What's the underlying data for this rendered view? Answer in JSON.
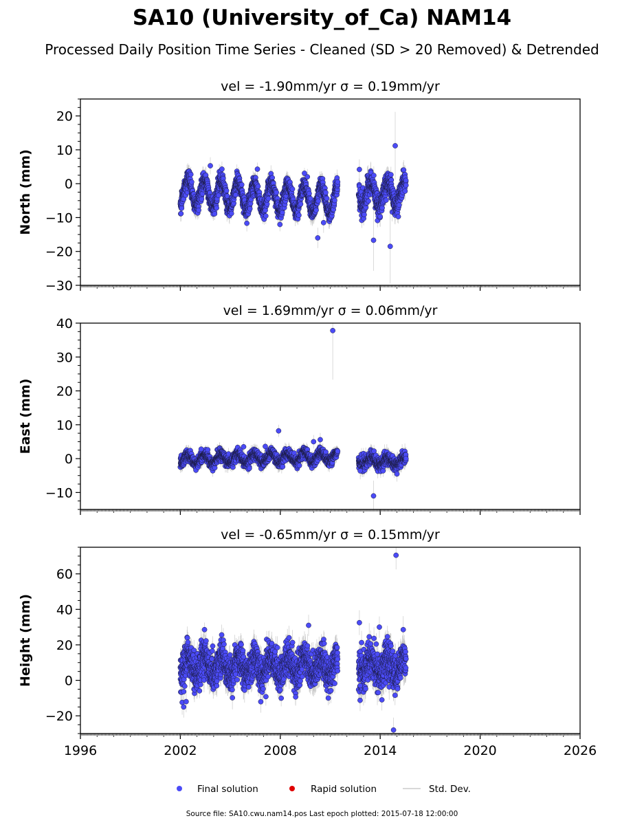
{
  "figure": {
    "title": "SA10 (University_of_Ca) NAM14",
    "subtitle": "Processed Daily Position Time Series - Cleaned (SD > 20 Removed) & Detrended",
    "source_text": "Source file: SA10.cwu.nam14.pos  Last epoch plotted: 2015-07-18 12:00:00"
  },
  "legend": {
    "placement": "bottom-center",
    "items": [
      {
        "label": "Final solution",
        "marker": "circle",
        "color": "#4b4bf7"
      },
      {
        "label": "Rapid solution",
        "marker": "circle",
        "color": "#e00000"
      },
      {
        "label": "Std. Dev.",
        "marker": "line",
        "color": "#cccccc"
      }
    ]
  },
  "colors": {
    "final_fill": "#4b4bf7",
    "final_edge": "#1a1a40",
    "rapid_fill": "#e00000",
    "errorbar": "#bdbdbd"
  },
  "chart_data": [
    {
      "type": "scatter",
      "panel": "north",
      "title": "vel = -1.90mm/yr   σ = 0.19mm/yr",
      "ylabel": "North (mm)",
      "xlim": [
        1996,
        2026
      ],
      "ylim": [
        -30,
        25
      ],
      "xticks": [
        1996,
        2002,
        2008,
        2014,
        2020,
        2026
      ],
      "yticks": [
        -30,
        -20,
        -10,
        0,
        10,
        20
      ],
      "ytick_labels": [
        "−30",
        "−20",
        "−10",
        "0",
        "10",
        "20"
      ],
      "xtick_labels_shown": false,
      "grid": false,
      "series": [
        {
          "marker": "circle",
          "segments": [
            {
              "start": 2002.0,
              "end": 2011.45,
              "mean": -2.5,
              "annual_amp": 4.0,
              "noise": 1.3,
              "sigma": 2.0,
              "trend": -0.25
            },
            {
              "start": 2012.7,
              "end": 2015.55,
              "mean": -3.0,
              "annual_amp": 3.5,
              "noise": 1.6,
              "sigma": 2.4,
              "trend": 0
            }
          ],
          "outliers": [
            {
              "x": 2003.8,
              "y": 5.3,
              "sd": 2.5
            },
            {
              "x": 2010.25,
              "y": -16.0,
              "sd": 3.0
            },
            {
              "x": 2010.6,
              "y": -11.5,
              "sd": 3.0
            },
            {
              "x": 2012.75,
              "y": 4.2,
              "sd": 3.0
            },
            {
              "x": 2013.6,
              "y": -16.7,
              "sd": 9.0
            },
            {
              "x": 2014.6,
              "y": -18.5,
              "sd": 11.0
            },
            {
              "x": 2014.9,
              "y": 11.2,
              "sd": 10.0
            }
          ]
        }
      ]
    },
    {
      "type": "scatter",
      "panel": "east",
      "title": "vel = 1.69mm/yr   σ = 0.06mm/yr",
      "ylabel": "East (mm)",
      "xlim": [
        1996,
        2026
      ],
      "ylim": [
        -15,
        40
      ],
      "xticks": [
        1996,
        2002,
        2008,
        2014,
        2020,
        2026
      ],
      "yticks": [
        -10,
        0,
        10,
        20,
        30,
        40
      ],
      "ytick_labels": [
        "−10",
        "0",
        "10",
        "20",
        "30",
        "40"
      ],
      "xtick_labels_shown": false,
      "grid": false,
      "series": [
        {
          "marker": "circle",
          "segments": [
            {
              "start": 2002.0,
              "end": 2011.45,
              "mean": -0.3,
              "annual_amp": 1.3,
              "noise": 0.8,
              "sigma": 1.5,
              "trend": 0.1
            },
            {
              "start": 2012.7,
              "end": 2015.55,
              "mean": -0.8,
              "annual_amp": 1.0,
              "noise": 0.9,
              "sigma": 1.8,
              "trend": 0
            }
          ],
          "outliers": [
            {
              "x": 2003.25,
              "y": 2.8,
              "sd": 1.5
            },
            {
              "x": 2005.8,
              "y": 3.5,
              "sd": 1.5
            },
            {
              "x": 2007.1,
              "y": 3.6,
              "sd": 1.5
            },
            {
              "x": 2007.9,
              "y": 8.2,
              "sd": 1.8
            },
            {
              "x": 2010.0,
              "y": 5.0,
              "sd": 2.0
            },
            {
              "x": 2010.4,
              "y": 5.6,
              "sd": 2.0
            },
            {
              "x": 2011.15,
              "y": 37.8,
              "sd": 14.5
            },
            {
              "x": 2012.8,
              "y": -3.6,
              "sd": 2.5
            },
            {
              "x": 2013.6,
              "y": -11.0,
              "sd": 4.5
            }
          ]
        }
      ]
    },
    {
      "type": "scatter",
      "panel": "height",
      "title": "vel = -0.65mm/yr   σ = 0.15mm/yr",
      "ylabel": "Height (mm)",
      "xlim": [
        1996,
        2026
      ],
      "ylim": [
        -30,
        75
      ],
      "xticks": [
        1996,
        2002,
        2008,
        2014,
        2020,
        2026
      ],
      "xtick_labels": [
        "1996",
        "2002",
        "2008",
        "2014",
        "2020",
        "2026"
      ],
      "yticks": [
        -20,
        0,
        20,
        40,
        60
      ],
      "ytick_labels": [
        "−20",
        "0",
        "20",
        "40",
        "60"
      ],
      "xtick_labels_shown": true,
      "grid": false,
      "series": [
        {
          "marker": "circle",
          "segments": [
            {
              "start": 2002.0,
              "end": 2011.45,
              "mean": 8.0,
              "annual_amp": 5.0,
              "noise": 5.0,
              "sigma": 5.5,
              "trend": 0
            },
            {
              "start": 2012.7,
              "end": 2015.55,
              "mean": 8.0,
              "annual_amp": 4.0,
              "noise": 5.5,
              "sigma": 6.0,
              "trend": 0
            }
          ],
          "outliers": [
            {
              "x": 2002.2,
              "y": -15.0,
              "sd": 6.0
            },
            {
              "x": 2002.35,
              "y": -12.0,
              "sd": 6.0
            },
            {
              "x": 2009.7,
              "y": 31.0,
              "sd": 6.0
            },
            {
              "x": 2012.75,
              "y": 32.5,
              "sd": 7.0
            },
            {
              "x": 2012.8,
              "y": -3.0,
              "sd": 6.0
            },
            {
              "x": 2013.95,
              "y": 30.0,
              "sd": 6.0
            },
            {
              "x": 2014.1,
              "y": -11.0,
              "sd": 6.0
            },
            {
              "x": 2014.8,
              "y": -28.0,
              "sd": 7.0
            },
            {
              "x": 2014.95,
              "y": 70.5,
              "sd": 8.0
            }
          ]
        }
      ]
    }
  ]
}
